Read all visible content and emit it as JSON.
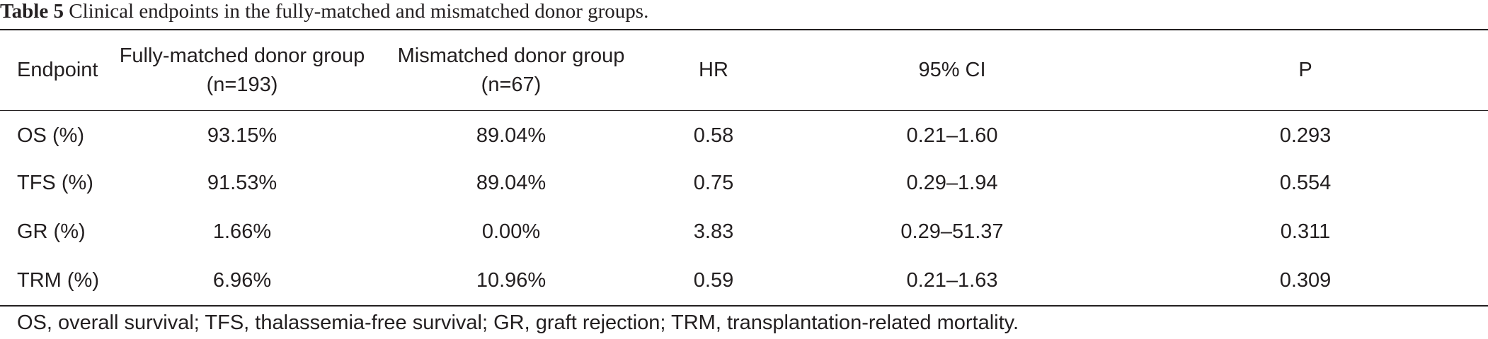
{
  "caption": {
    "label": "Table 5",
    "text": "Clinical endpoints in the fully-matched and mismatched donor groups."
  },
  "table": {
    "headers": [
      {
        "line1": "Endpoint",
        "line2": ""
      },
      {
        "line1": "Fully-matched donor group",
        "line2": "(n=193)"
      },
      {
        "line1": "Mismatched donor group",
        "line2": "(n=67)"
      },
      {
        "line1": "HR",
        "line2": ""
      },
      {
        "line1": "95% CI",
        "line2": ""
      },
      {
        "line1": "P",
        "line2": ""
      }
    ],
    "rows": [
      [
        "OS (%)",
        "93.15%",
        "89.04%",
        "0.58",
        "0.21–1.60",
        "0.293"
      ],
      [
        "TFS (%)",
        "91.53%",
        "89.04%",
        "0.75",
        "0.29–1.94",
        "0.554"
      ],
      [
        "GR (%)",
        "1.66%",
        "0.00%",
        "3.83",
        "0.29–51.37",
        "0.311"
      ],
      [
        "TRM (%)",
        "6.96%",
        "10.96%",
        "0.59",
        "0.21–1.63",
        "0.309"
      ]
    ]
  },
  "footnote": "OS, overall survival; TFS, thalassemia-free survival; GR, graft rejection; TRM, transplantation-related mortality."
}
